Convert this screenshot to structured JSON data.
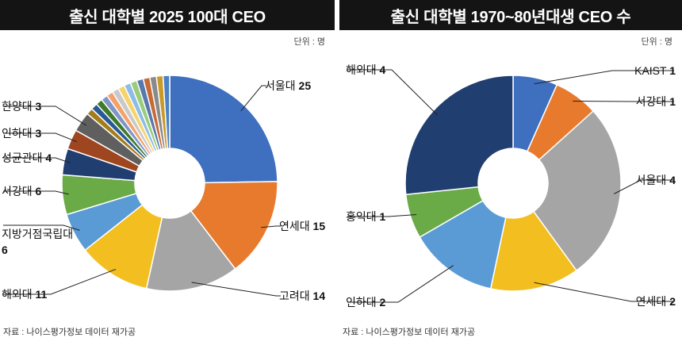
{
  "source_text": "자료 : 나이스평가정보 데이터 재가공",
  "unit_text": "단위 : 명",
  "chart_data": [
    {
      "type": "pie",
      "title": "출신 대학별 2025 100대 CEO",
      "unit": "단위 : 명",
      "slices": [
        {
          "label": "서울대",
          "value": 25,
          "color": "#3f6fbf"
        },
        {
          "label": "연세대",
          "value": 15,
          "color": "#e87a2d"
        },
        {
          "label": "고려대",
          "value": 14,
          "color": "#a5a5a5"
        },
        {
          "label": "해외대",
          "value": 11,
          "color": "#f3be1f"
        },
        {
          "label": "지방거점국립대",
          "value": 6,
          "color": "#5b9bd5"
        },
        {
          "label": "서강대",
          "value": 6,
          "color": "#6aab47"
        },
        {
          "label": "성균관대",
          "value": 4,
          "color": "#203e70"
        },
        {
          "label": "인하대",
          "value": 3,
          "color": "#9e4620"
        },
        {
          "label": "한양대",
          "value": 3,
          "color": "#5f5f5f"
        },
        {
          "label": "",
          "value": 1,
          "color": "#a47c19"
        },
        {
          "label": "",
          "value": 1,
          "color": "#2a5a96"
        },
        {
          "label": "",
          "value": 1,
          "color": "#3f7a2a"
        },
        {
          "label": "",
          "value": 1,
          "color": "#7f96c8"
        },
        {
          "label": "",
          "value": 1,
          "color": "#f2a36c"
        },
        {
          "label": "",
          "value": 1,
          "color": "#c9c9c9"
        },
        {
          "label": "",
          "value": 1,
          "color": "#f6d46c"
        },
        {
          "label": "",
          "value": 1,
          "color": "#8dbce5"
        },
        {
          "label": "",
          "value": 1,
          "color": "#9acd7a"
        },
        {
          "label": "",
          "value": 1,
          "color": "#5878b0"
        },
        {
          "label": "",
          "value": 1,
          "color": "#c86a36"
        },
        {
          "label": "",
          "value": 1,
          "color": "#8a8a8a"
        },
        {
          "label": "",
          "value": 1,
          "color": "#c99a2a"
        },
        {
          "label": "",
          "value": 1,
          "color": "#4a82c4"
        }
      ]
    },
    {
      "type": "pie",
      "title": "출신 대학별 1970~80년대생 CEO 수",
      "unit": "단위 : 명",
      "slices": [
        {
          "label": "KAIST",
          "value": 1,
          "color": "#3f6fbf"
        },
        {
          "label": "서강대",
          "value": 1,
          "color": "#e87a2d"
        },
        {
          "label": "서울대",
          "value": 4,
          "color": "#a5a5a5"
        },
        {
          "label": "연세대",
          "value": 2,
          "color": "#f3be1f"
        },
        {
          "label": "인하대",
          "value": 2,
          "color": "#5b9bd5"
        },
        {
          "label": "홍익대",
          "value": 1,
          "color": "#6aab47"
        },
        {
          "label": "해외대",
          "value": 4,
          "color": "#203e70"
        }
      ]
    }
  ]
}
